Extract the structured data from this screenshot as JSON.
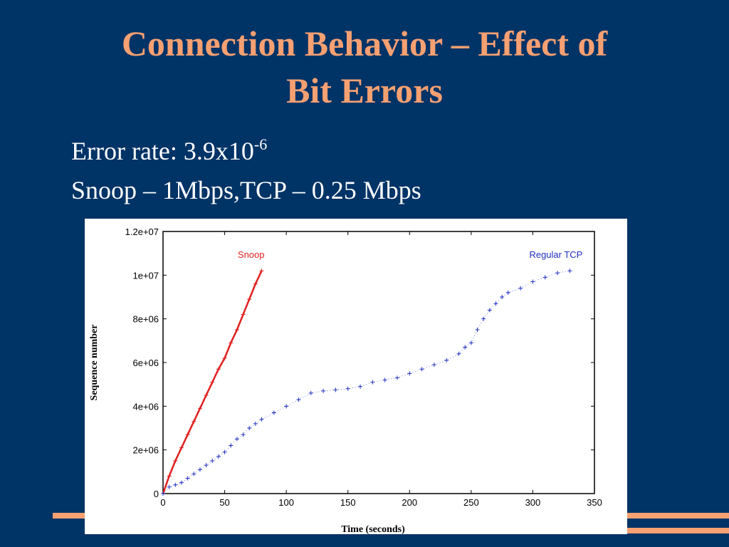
{
  "slide": {
    "title_line1": "Connection Behavior – Effect of",
    "title_line2": "Bit Errors",
    "line1_prefix": "Error rate: 3.9x10",
    "line1_exponent": "-6",
    "line2": "Snoop – 1Mbps,TCP – 0.25 Mbps"
  },
  "colors": {
    "background": "#003366",
    "title": "#f7a072",
    "accent_lines": "#f7a072",
    "snoop": "#e02020",
    "regular_tcp": "#2030c0"
  },
  "chart_data": {
    "type": "scatter",
    "xlabel": "Time (seconds)",
    "ylabel": "Sequence number",
    "xlim": [
      0,
      350
    ],
    "ylim": [
      0,
      12000000
    ],
    "x_ticks": [
      0,
      50,
      100,
      150,
      200,
      250,
      300,
      350
    ],
    "x_tick_labels": [
      "0",
      "50",
      "100",
      "150",
      "200",
      "250",
      "300",
      "350"
    ],
    "y_ticks": [
      0,
      2000000,
      4000000,
      6000000,
      8000000,
      10000000,
      12000000
    ],
    "y_tick_labels": [
      "0",
      "2e+06",
      "4e+06",
      "6e+06",
      "8e+06",
      "1e+07",
      "1.2e+07"
    ],
    "grid": false,
    "series": [
      {
        "name": "Snoop",
        "color": "#e02020",
        "x": [
          0,
          5,
          10,
          15,
          20,
          25,
          30,
          35,
          40,
          45,
          50,
          55,
          60,
          65,
          70,
          75,
          80
        ],
        "y": [
          0,
          800000,
          1500000,
          2100000,
          2700000,
          3300000,
          3900000,
          4500000,
          5100000,
          5700000,
          6200000,
          6900000,
          7500000,
          8200000,
          8900000,
          9600000,
          10200000
        ]
      },
      {
        "name": "Regular TCP",
        "color": "#2030c0",
        "x": [
          0,
          5,
          10,
          15,
          20,
          25,
          30,
          35,
          40,
          45,
          50,
          55,
          60,
          65,
          70,
          75,
          80,
          90,
          100,
          110,
          120,
          130,
          140,
          150,
          160,
          170,
          180,
          190,
          200,
          210,
          220,
          230,
          240,
          245,
          250,
          255,
          260,
          265,
          270,
          275,
          280,
          290,
          300,
          310,
          320,
          330
        ],
        "y": [
          0,
          300000,
          400000,
          500000,
          700000,
          900000,
          1100000,
          1300000,
          1500000,
          1700000,
          1900000,
          2200000,
          2500000,
          2700000,
          3000000,
          3200000,
          3400000,
          3700000,
          4000000,
          4300000,
          4600000,
          4700000,
          4750000,
          4800000,
          4900000,
          5100000,
          5200000,
          5300000,
          5500000,
          5700000,
          5900000,
          6100000,
          6400000,
          6700000,
          6900000,
          7500000,
          8000000,
          8400000,
          8700000,
          9000000,
          9200000,
          9400000,
          9700000,
          9900000,
          10100000,
          10200000
        ]
      }
    ]
  }
}
